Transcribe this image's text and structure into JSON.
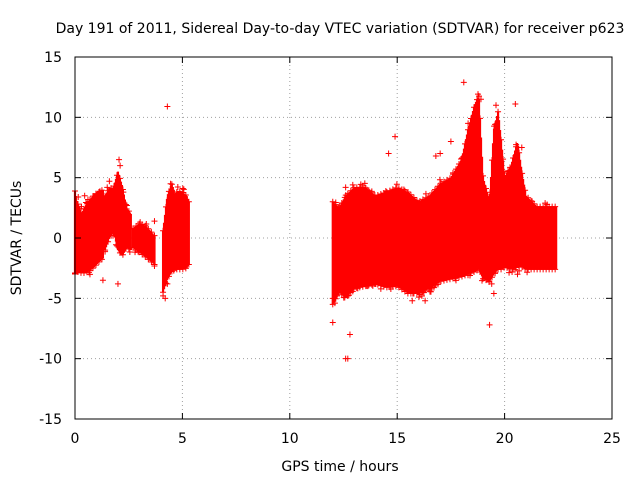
{
  "chart_data": {
    "type": "scatter",
    "title": "Day 191 of 2011, Sidereal Day-to-day VTEC variation (SDTVAR) for receiver p623",
    "xlabel": "GPS time / hours",
    "ylabel": "SDTVAR / TECUs",
    "xlim": [
      0,
      25
    ],
    "ylim": [
      -15,
      15
    ],
    "xticks": [
      0,
      5,
      10,
      15,
      20,
      25
    ],
    "yticks": [
      -15,
      -10,
      -5,
      0,
      5,
      10,
      15
    ],
    "grid": true,
    "marker": "+",
    "color": "#ff0000",
    "series": [
      {
        "name": "p623",
        "segments": [
          {
            "x_start": 0.0,
            "x_end": 1.3,
            "envelope": [
              [
                0.0,
                -2.9,
                3.9
              ],
              [
                0.1,
                -2.8,
                3.0
              ],
              [
                0.3,
                -2.9,
                2.0
              ],
              [
                0.5,
                -2.9,
                2.7
              ],
              [
                0.7,
                -2.7,
                3.2
              ],
              [
                0.9,
                -2.4,
                3.6
              ],
              [
                1.1,
                -2.0,
                3.8
              ],
              [
                1.3,
                -1.7,
                4.0
              ]
            ]
          },
          {
            "x_start": 1.4,
            "x_end": 2.6,
            "envelope": [
              [
                1.4,
                -1.0,
                3.5
              ],
              [
                1.6,
                0.0,
                4.1
              ],
              [
                1.8,
                0.5,
                4.2
              ],
              [
                2.0,
                -1.0,
                5.5
              ],
              [
                2.2,
                -1.5,
                4.3
              ],
              [
                2.4,
                -0.8,
                2.5
              ],
              [
                2.6,
                -1.0,
                2.0
              ]
            ]
          },
          {
            "x_start": 2.7,
            "x_end": 3.7,
            "envelope": [
              [
                2.7,
                -0.8,
                0.8
              ],
              [
                3.0,
                -1.2,
                1.2
              ],
              [
                3.3,
                -1.6,
                1.0
              ],
              [
                3.7,
                -2.2,
                0.2
              ]
            ]
          },
          {
            "x_start": 4.1,
            "x_end": 4.6,
            "envelope": [
              [
                4.1,
                -4.5,
                0.6
              ],
              [
                4.3,
                -3.4,
                3.5
              ],
              [
                4.5,
                -2.8,
                4.5
              ],
              [
                4.6,
                -2.5,
                4.0
              ]
            ]
          },
          {
            "x_start": 4.6,
            "x_end": 5.3,
            "envelope": [
              [
                4.6,
                -2.6,
                3.6
              ],
              [
                4.8,
                -2.6,
                3.9
              ],
              [
                5.0,
                -2.6,
                3.8
              ],
              [
                5.2,
                -2.5,
                3.5
              ],
              [
                5.3,
                -2.2,
                3.0
              ]
            ]
          },
          {
            "x_start": 12.0,
            "x_end": 22.4,
            "envelope": [
              [
                12.0,
                -5.5,
                3.0
              ],
              [
                12.3,
                -4.5,
                2.5
              ],
              [
                12.6,
                -5.0,
                3.5
              ],
              [
                13.0,
                -4.2,
                4.2
              ],
              [
                13.5,
                -4.0,
                4.2
              ],
              [
                14.0,
                -3.8,
                3.5
              ],
              [
                14.5,
                -4.1,
                3.8
              ],
              [
                15.0,
                -4.0,
                4.2
              ],
              [
                15.5,
                -4.6,
                3.8
              ],
              [
                16.0,
                -4.6,
                3.0
              ],
              [
                16.5,
                -4.2,
                3.5
              ],
              [
                17.0,
                -3.6,
                4.5
              ],
              [
                17.5,
                -3.4,
                5.0
              ],
              [
                18.0,
                -3.2,
                6.5
              ],
              [
                18.3,
                -3.0,
                9.0
              ],
              [
                18.6,
                -2.8,
                11.0
              ],
              [
                18.8,
                -2.6,
                11.8
              ],
              [
                19.0,
                -3.4,
                5.0
              ],
              [
                19.3,
                -3.6,
                3.0
              ],
              [
                19.5,
                -3.0,
                9.0
              ],
              [
                19.7,
                -2.6,
                10.5
              ],
              [
                19.9,
                -2.6,
                7.0
              ],
              [
                20.0,
                -2.4,
                5.0
              ],
              [
                20.3,
                -2.6,
                6.0
              ],
              [
                20.6,
                -2.4,
                8.0
              ],
              [
                20.8,
                -2.4,
                5.5
              ],
              [
                21.0,
                -2.6,
                3.5
              ],
              [
                21.5,
                -2.6,
                2.6
              ],
              [
                22.0,
                -2.6,
                2.6
              ],
              [
                22.4,
                -2.6,
                2.6
              ]
            ]
          }
        ],
        "outliers": [
          [
            0.15,
            3.4
          ],
          [
            0.3,
            2.6
          ],
          [
            0.4,
            -2.4
          ],
          [
            0.45,
            3.5
          ],
          [
            0.6,
            2.9
          ],
          [
            0.8,
            2.0
          ],
          [
            1.0,
            3.6
          ],
          [
            1.3,
            -3.5
          ],
          [
            1.5,
            4.2
          ],
          [
            1.6,
            4.7
          ],
          [
            1.8,
            1.4
          ],
          [
            2.05,
            6.5
          ],
          [
            2.1,
            6.0
          ],
          [
            2.0,
            -3.8
          ],
          [
            2.25,
            3.8
          ],
          [
            2.3,
            -0.5
          ],
          [
            3.7,
            1.4
          ],
          [
            4.2,
            -5.0
          ],
          [
            4.3,
            -3.8
          ],
          [
            4.4,
            3.3
          ],
          [
            4.3,
            10.9
          ],
          [
            4.45,
            4.5
          ],
          [
            12.0,
            -5.0
          ],
          [
            12.0,
            -7.0
          ],
          [
            12.1,
            -5.4
          ],
          [
            12.2,
            -4.8
          ],
          [
            12.6,
            -10.0
          ],
          [
            12.7,
            -10.0
          ],
          [
            12.8,
            -8.0
          ],
          [
            12.6,
            4.2
          ],
          [
            13.6,
            4.0
          ],
          [
            14.6,
            7.0
          ],
          [
            14.9,
            8.4
          ],
          [
            15.7,
            -5.2
          ],
          [
            16.3,
            -5.2
          ],
          [
            16.8,
            6.8
          ],
          [
            17.0,
            7.0
          ],
          [
            17.5,
            8.0
          ],
          [
            18.1,
            12.9
          ],
          [
            18.3,
            9.5
          ],
          [
            19.3,
            -7.2
          ],
          [
            19.5,
            -4.6
          ],
          [
            19.4,
            -3.8
          ],
          [
            20.5,
            11.1
          ],
          [
            20.6,
            -3.0
          ],
          [
            21.0,
            -2.0
          ],
          [
            19.6,
            11.0
          ],
          [
            18.9,
            11.5
          ],
          [
            20.8,
            7.5
          ],
          [
            22.3,
            2.0
          ]
        ]
      }
    ]
  }
}
